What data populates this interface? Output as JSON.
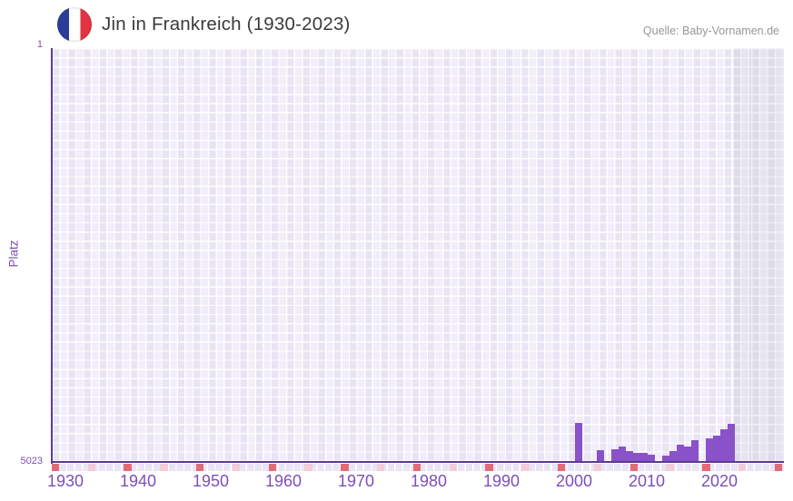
{
  "header": {
    "title": "Jin in Frankreich (1930-2023)",
    "source": "Quelle: Baby-Vornamen.de"
  },
  "chart_data": {
    "type": "bar",
    "title": "Jin in Frankreich (1930-2023)",
    "source": "Quelle: Baby-Vornamen.de",
    "xlabel": "",
    "ylabel": "Platz",
    "y_axis": {
      "top_tick": "1",
      "bottom_tick": "5023",
      "best_rank": 1,
      "worst_rank": 5023,
      "inverted": true,
      "grid": "checkered-lavender"
    },
    "x_axis": {
      "ticks": [
        1930,
        1940,
        1950,
        1960,
        1970,
        1980,
        1990,
        2000,
        2010,
        2020
      ],
      "range_label": "1930-2023",
      "decade_marker_color": "red",
      "half_decade_marker_color": "pink"
    },
    "series": [
      {
        "name": "Jin",
        "points": [
          {
            "year": 2000,
            "rank": 4559
          },
          {
            "year": 2003,
            "rank": 4890
          },
          {
            "year": 2005,
            "rank": 4879
          },
          {
            "year": 2006,
            "rank": 4846
          },
          {
            "year": 2007,
            "rank": 4901
          },
          {
            "year": 2008,
            "rank": 4923
          },
          {
            "year": 2009,
            "rank": 4923
          },
          {
            "year": 2010,
            "rank": 4945
          },
          {
            "year": 2012,
            "rank": 4956
          },
          {
            "year": 2013,
            "rank": 4901
          },
          {
            "year": 2014,
            "rank": 4824
          },
          {
            "year": 2015,
            "rank": 4846
          },
          {
            "year": 2016,
            "rank": 4769
          },
          {
            "year": 2018,
            "rank": 4747
          },
          {
            "year": 2019,
            "rank": 4713
          },
          {
            "year": 2020,
            "rank": 4636
          },
          {
            "year": 2021,
            "rank": 4570
          }
        ]
      }
    ],
    "no_data_region": {
      "from_year": 2022,
      "style": "gray-band"
    },
    "legend": "none",
    "colors": {
      "bar": "#8a52c8",
      "axis_line": "#5d3995",
      "tick_label": "#7b4fb7",
      "plot_cell_dark": "#e9e4f4",
      "plot_cell_light": "#f1edfa",
      "future_cell_dark": "#dfdce9",
      "future_cell_light": "#e7e4ef",
      "decade_marker": "#e26b76",
      "half_decade_marker": "#f2ccd7",
      "flag_blue": "#2c3d99",
      "flag_red": "#e23343",
      "title_text": "#3a3a3a",
      "source_text": "#979797"
    }
  }
}
